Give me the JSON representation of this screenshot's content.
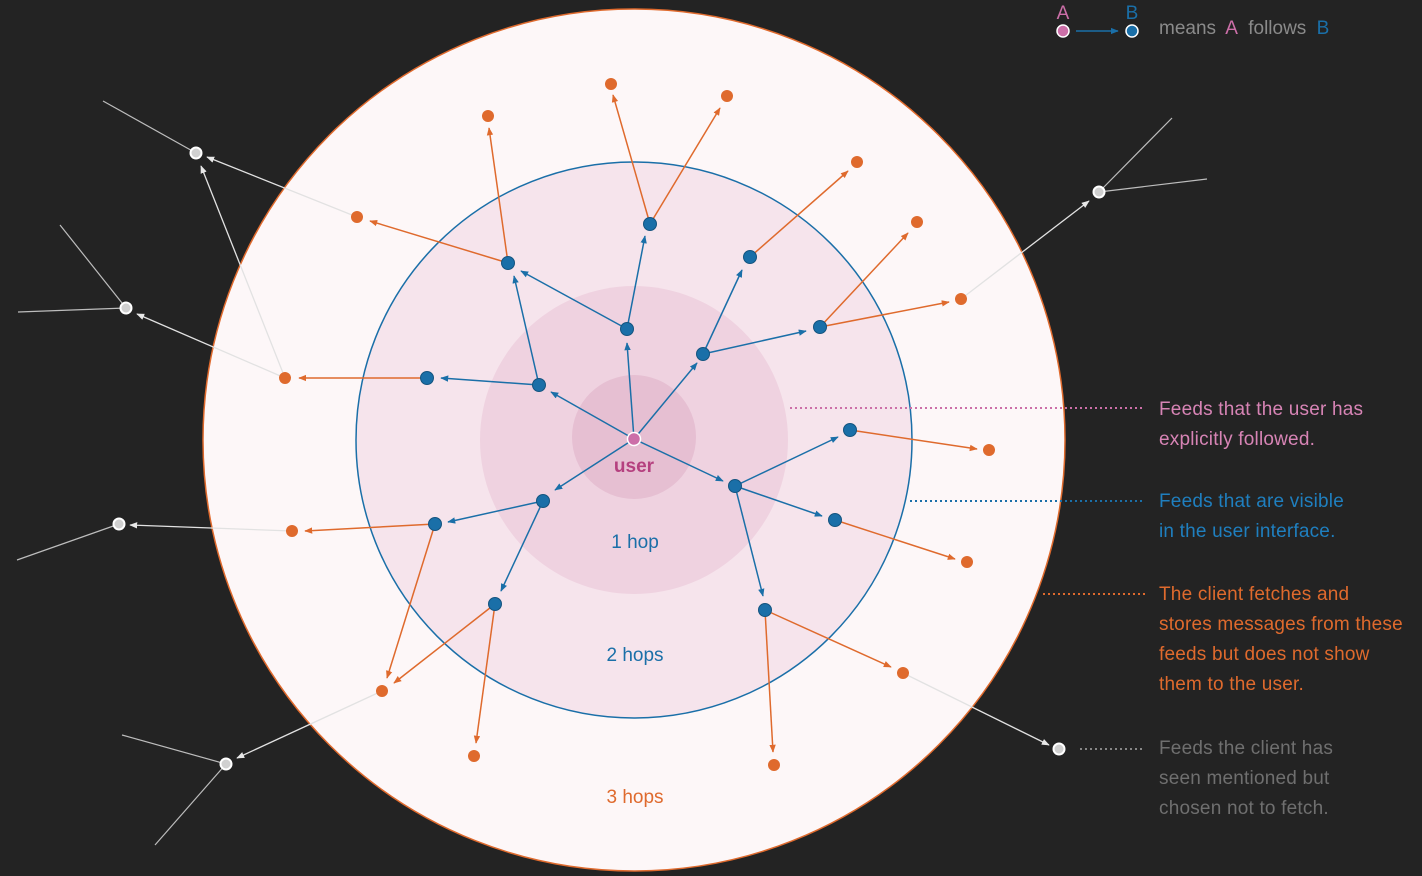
{
  "legend": {
    "a_letter": "A",
    "b_letter": "B",
    "text_prefix": "means",
    "text_a": "A",
    "text_mid": "follows",
    "text_b": "B"
  },
  "diagram": {
    "center_label": "user",
    "ring_labels": {
      "hop1": "1 hop",
      "hop2": "2 hops",
      "hop3": "3 hops"
    }
  },
  "annotations": {
    "followed": [
      "Feeds that the user has",
      "explicitly followed."
    ],
    "visible": [
      "Feeds that are visible",
      "in the user interface."
    ],
    "fetched": [
      "The client fetches and",
      "stores messages from these",
      "feeds but does not show",
      "them to the user."
    ],
    "mentioned": [
      "Feeds the client has",
      "seen mentioned but",
      "chosen not to fetch."
    ]
  },
  "colors": {
    "background": "#232323",
    "pink": "#cc6fa8",
    "blue": "#1a6fa8",
    "orange": "#df6a2d",
    "gray": "#cccccc",
    "outer_fill": "#fdf7f8",
    "hop2_fill": "#f6e4ec",
    "hop1_fill": "#efd2e0",
    "core_fill": "#e6bfd2"
  }
}
